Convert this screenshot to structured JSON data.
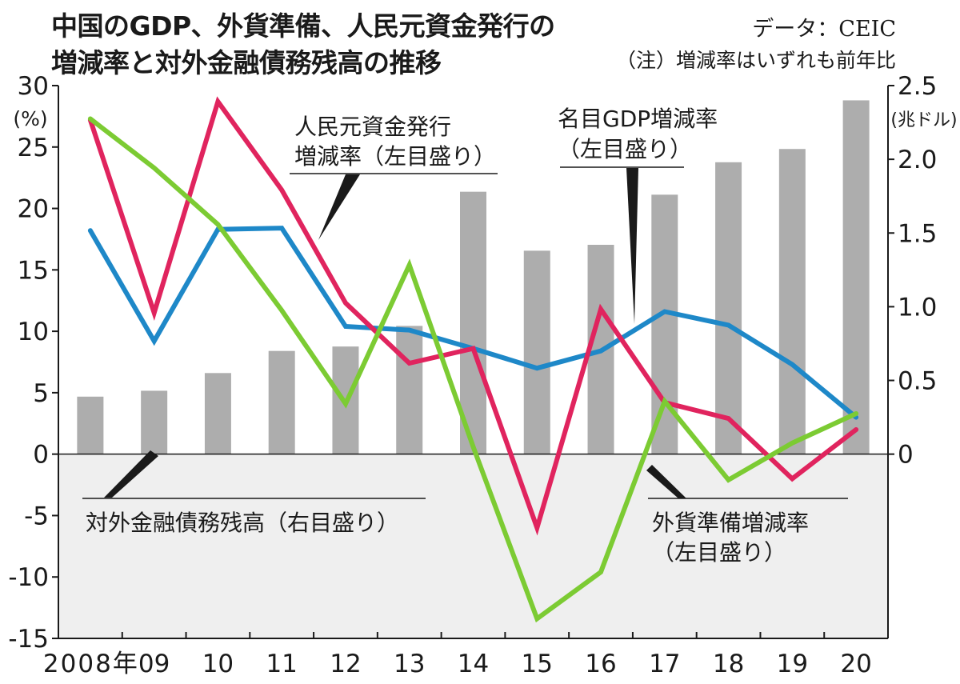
{
  "header": {
    "title_line1": "中国のGDP、外貨準備、人民元資金発行の",
    "title_line2": "増減率と対外金融債務残高の推移",
    "source": "データ：CEIC",
    "note": "（注）増減率はいずれも前年比"
  },
  "chart_data": {
    "type": "bar",
    "title": "中国のGDP、外貨準備、人民元資金発行の増減率と対外金融債務残高の推移",
    "x": [
      "2008年",
      "09",
      "10",
      "11",
      "12",
      "13",
      "14",
      "15",
      "16",
      "17",
      "18",
      "19",
      "20"
    ],
    "y_left": {
      "unit": "(%)",
      "ylim": [
        -15,
        30
      ],
      "ticks": [
        "30",
        "25",
        "20",
        "15",
        "10",
        "5",
        "0",
        "-5",
        "-10",
        "-15"
      ]
    },
    "y_right": {
      "unit": "(兆ドル)",
      "ylim": [
        0,
        2.5
      ],
      "ticks": [
        "2.5",
        "2.0",
        "1.5",
        "1.0",
        "0.5",
        "0"
      ]
    },
    "series": [
      {
        "name": "対外金融債務残高（右目盛り）",
        "kind": "bar",
        "axis": "right",
        "color": "#adadad",
        "values": [
          0.39,
          0.43,
          0.55,
          0.7,
          0.73,
          0.87,
          1.78,
          1.38,
          1.42,
          1.76,
          1.98,
          2.07,
          2.4
        ]
      },
      {
        "name": "名目GDP増減率（左目盛り）",
        "kind": "line",
        "axis": "left",
        "color": "#1e88c8",
        "values": [
          18.2,
          9.2,
          18.3,
          18.4,
          10.4,
          10.1,
          8.6,
          7.0,
          8.4,
          11.6,
          10.5,
          7.3,
          3.0
        ]
      },
      {
        "name": "人民元資金発行増減率（左目盛り）",
        "kind": "line",
        "axis": "left",
        "color": "#e0245e",
        "values": [
          27.2,
          11.5,
          28.7,
          21.5,
          12.3,
          7.4,
          8.6,
          -6.0,
          11.8,
          4.2,
          2.9,
          -2.0,
          2.0
        ]
      },
      {
        "name": "外貨準備増減率（左目盛り）",
        "kind": "line",
        "axis": "left",
        "color": "#7ccb33",
        "values": [
          27.3,
          23.3,
          18.7,
          11.7,
          4.1,
          15.4,
          0.6,
          -13.4,
          -9.6,
          4.3,
          -2.1,
          0.9,
          3.3
        ]
      }
    ],
    "labels": {
      "rmb": [
        "人民元資金発行",
        "増減率（左目盛り）"
      ],
      "gdp": [
        "名目GDP増減率",
        "（左目盛り）"
      ],
      "debt": "対外金融債務残高（右目盛り）",
      "fx": [
        "外貨準備増減率",
        "（左目盛り）"
      ]
    },
    "negative_region_color": "#efefef",
    "grid": false,
    "legend": "inline labels"
  }
}
